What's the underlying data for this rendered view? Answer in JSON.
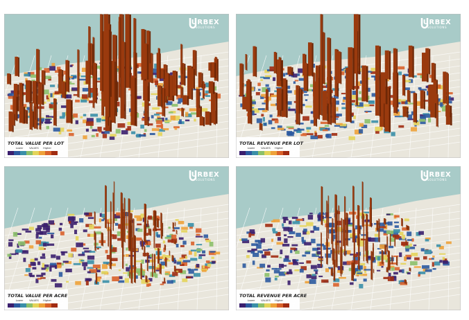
{
  "logo": {
    "name": "URBEX",
    "tagline": "SOLUTIONS"
  },
  "legend": {
    "low": "Lower",
    "mid": "VALUES",
    "high": "Higher",
    "colors": [
      "#3b1f6e",
      "#2c5aa0",
      "#3a8fa8",
      "#8cc06a",
      "#e4d45a",
      "#eea23a",
      "#d9622b",
      "#a12c12"
    ]
  },
  "panels": [
    {
      "title": "TOTAL VALUE PER LOT"
    },
    {
      "title": "TOTAL REVENUE PER LOT"
    },
    {
      "title": "TOTAL VALUE PER ACRE"
    },
    {
      "title": "TOTAL REVENUE PER ACRE"
    }
  ]
}
